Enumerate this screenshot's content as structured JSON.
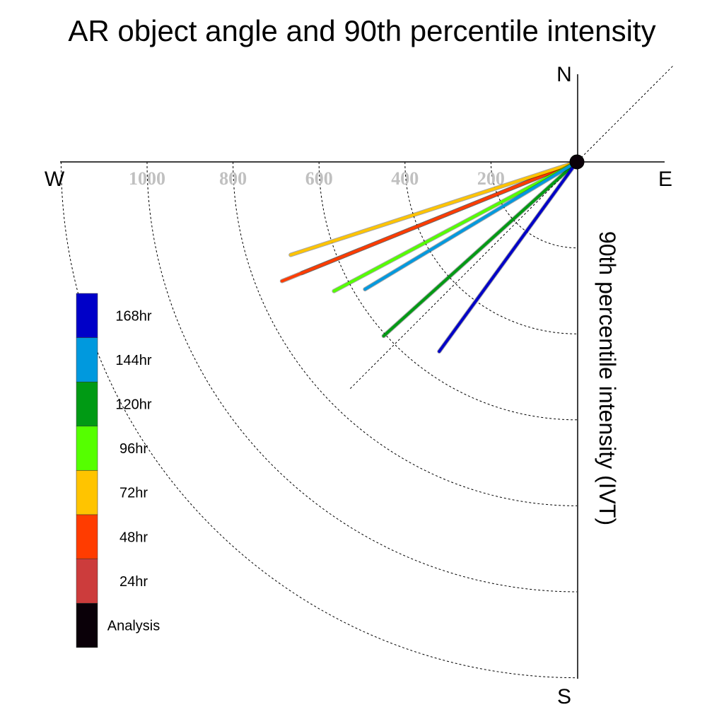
{
  "chart_data": {
    "type": "polar-vector",
    "title": "AR object angle and 90th percentile intensity",
    "ylabel": "90th percentile intensity (IVT)",
    "compass": {
      "north": "N",
      "south": "S",
      "east": "E",
      "west": "W"
    },
    "radial_ticks": [
      200,
      400,
      600,
      800,
      1000
    ],
    "rmax": 1200,
    "series": [
      {
        "name": "Analysis",
        "color": "#0a0008",
        "angle_deg": 225,
        "intensity": 0
      },
      {
        "name": "24hr",
        "color": "#cc3c3c",
        "angle_deg": 248,
        "intensity": 690
      },
      {
        "name": "48hr",
        "color": "#ff3c00",
        "angle_deg": 248,
        "intensity": 740
      },
      {
        "name": "72hr",
        "color": "#ffc400",
        "angle_deg": 252,
        "intensity": 700
      },
      {
        "name": "96hr",
        "color": "#55ff00",
        "angle_deg": 242,
        "intensity": 640
      },
      {
        "name": "120hr",
        "color": "#009a14",
        "angle_deg": 228,
        "intensity": 605
      },
      {
        "name": "144hr",
        "color": "#0099de",
        "angle_deg": 239,
        "intensity": 575
      },
      {
        "name": "168hr",
        "color": "#0000c8",
        "angle_deg": 216,
        "intensity": 545
      }
    ],
    "legend_order": [
      "168hr",
      "144hr",
      "120hr",
      "96hr",
      "72hr",
      "48hr",
      "24hr",
      "Analysis"
    ]
  }
}
